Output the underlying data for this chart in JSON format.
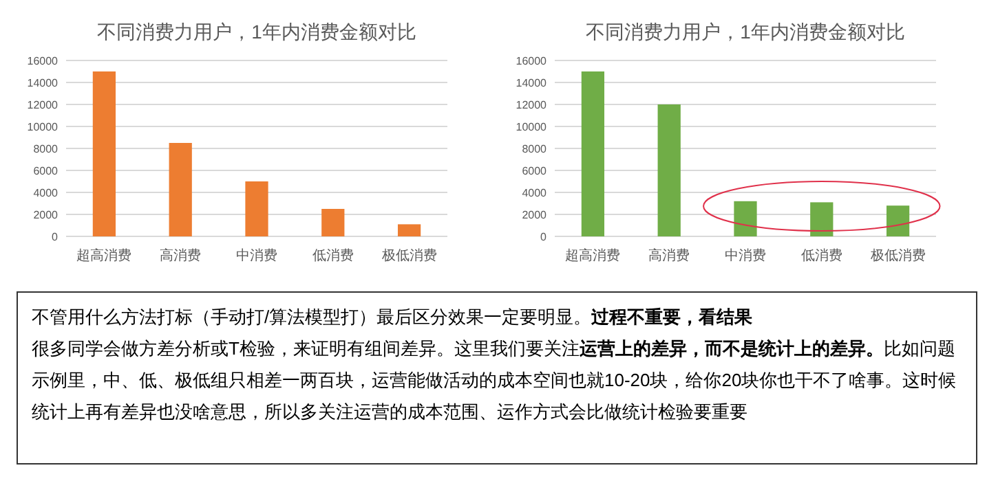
{
  "chart_data": [
    {
      "type": "bar",
      "title": "不同消费力用户，1年内消费金额对比",
      "categories": [
        "超高消费",
        "高消费",
        "中消费",
        "低消费",
        "极低消费"
      ],
      "values": [
        15000,
        8500,
        5000,
        2500,
        1100
      ],
      "color": "#ed7d31",
      "ylim": [
        0,
        16000
      ],
      "yticks": [
        0,
        2000,
        4000,
        6000,
        8000,
        10000,
        12000,
        14000,
        16000
      ],
      "grid": "y"
    },
    {
      "type": "bar",
      "title": "不同消费力用户，1年内消费金额对比",
      "categories": [
        "超高消费",
        "高消费",
        "中消费",
        "低消费",
        "极低消费"
      ],
      "values": [
        15000,
        12000,
        3200,
        3100,
        2800
      ],
      "color": "#70ad47",
      "ylim": [
        0,
        16000
      ],
      "yticks": [
        0,
        2000,
        4000,
        6000,
        8000,
        10000,
        12000,
        14000,
        16000
      ],
      "grid": "y"
    },
    {
      "type": "other",
      "annotations": [
        "不管用什么方法打标（手动打/算法模型打）最后区分效果一定要明显。",
        "过程不重要，看结果",
        "很多同学会做方差分析或T检验，来证明有组间差异。这里我们要关注",
        "运营上的差异，而不是统计上的差异。",
        "比如问题示例里，中、低、极低组只相差一两百块，运营能做活动的成本空间也就10-20块，给你20块你也干不了啥事。这时候统计上再有差异也没啥意思，所以多关注运营的成本范围、运作方式会比做统计检验要重要"
      ]
    }
  ]
}
